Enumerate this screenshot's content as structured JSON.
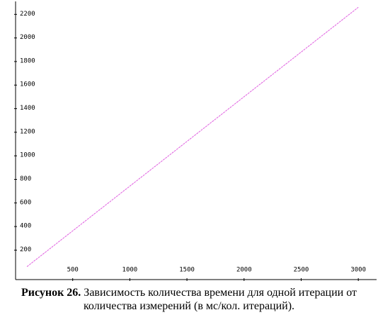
{
  "chart_data": {
    "type": "line",
    "x": [
      100,
      3000
    ],
    "series": [
      {
        "color": "#e060e0",
        "values": [
          60,
          2260
        ]
      }
    ],
    "xlim": [
      0,
      3160
    ],
    "ylim": [
      -50,
      2310
    ],
    "xticks": [
      500,
      1000,
      1500,
      2000,
      2500,
      3000
    ],
    "yticks": [
      200,
      400,
      600,
      800,
      1000,
      1200,
      1400,
      1600,
      1800,
      2000,
      2200
    ],
    "figure_label": "Рисунок 26.",
    "caption": "Зависимость количества времени для одной итерации от количества измерений (в мс/кол. итераций)."
  }
}
